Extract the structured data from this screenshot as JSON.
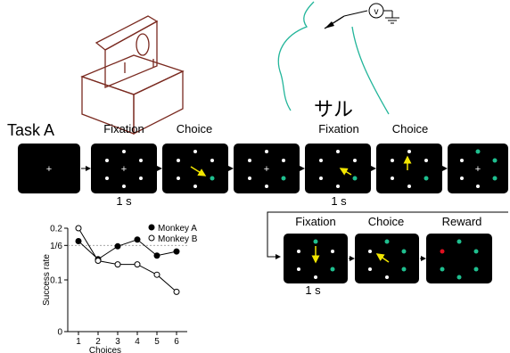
{
  "task_label": "Task A",
  "annotation": "サル",
  "steps": {
    "fixation": "Fixation",
    "choice": "Choice",
    "reward": "Reward"
  },
  "durations": [
    "1 s",
    "1 s",
    "1 s"
  ],
  "probe_label": "v",
  "colors": {
    "screen": "#000000",
    "target": "#ffffff",
    "chosen": "#1fbf8f",
    "cursor": "#f2e600",
    "reward": "#e01020",
    "electrode": "#22b59a",
    "apparatus": "#7a2a20"
  },
  "chart_data": {
    "type": "line",
    "x": [
      1,
      2,
      3,
      4,
      5,
      6
    ],
    "xlabel": "Choices",
    "ylabel": "Success rate",
    "ylim": [
      0,
      0.2
    ],
    "yticks": [
      {
        "value": 0,
        "label": "0"
      },
      {
        "value": 0.1,
        "label": "0.1"
      },
      {
        "value": 0.1667,
        "label": "1/6"
      },
      {
        "value": 0.2,
        "label": "0.2"
      }
    ],
    "reference_line": 0.1667,
    "legend_position": "top-right",
    "series": [
      {
        "name": "Monkey A",
        "marker": "filled",
        "values": [
          0.175,
          0.14,
          0.165,
          0.178,
          0.147,
          0.155
        ]
      },
      {
        "name": "Monkey B",
        "marker": "open",
        "values": [
          0.2,
          0.137,
          0.13,
          0.13,
          0.11,
          0.077
        ]
      }
    ]
  }
}
